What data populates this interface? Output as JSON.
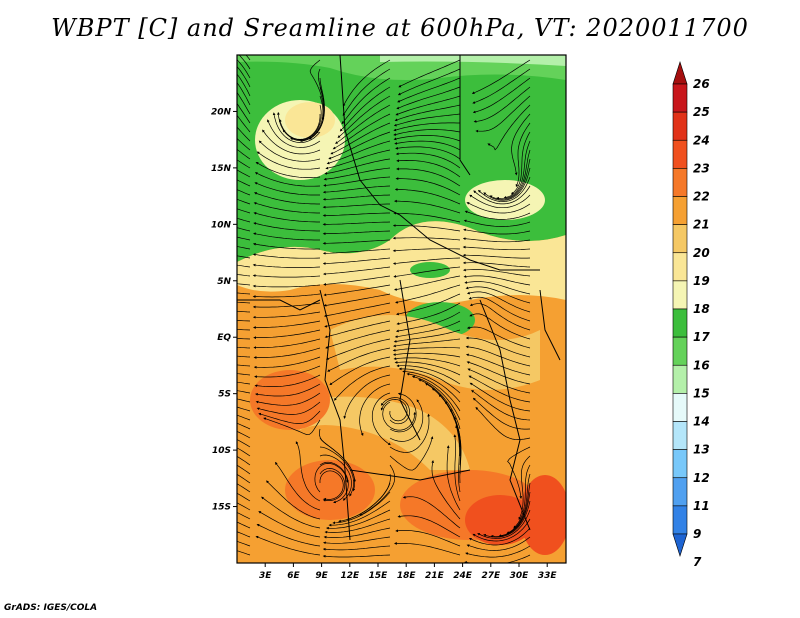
{
  "title": "WBPT [C] and Sreamline at 600hPa, VT: 2020011700",
  "credit": "GrADS: IGES/COLA",
  "map": {
    "lat_labels": [
      "20N",
      "15N",
      "10N",
      "5N",
      "EQ",
      "5S",
      "10S",
      "15S"
    ],
    "lat_values": [
      20,
      15,
      10,
      5,
      0,
      -5,
      -10,
      -15
    ],
    "lon_labels": [
      "3E",
      "6E",
      "9E",
      "12E",
      "15E",
      "18E",
      "21E",
      "24E",
      "27E",
      "30E",
      "33E"
    ],
    "lon_values": [
      3,
      6,
      9,
      12,
      15,
      18,
      21,
      24,
      27,
      30,
      33
    ],
    "lon_range": [
      0,
      35
    ],
    "lat_range": [
      -20,
      25
    ]
  },
  "colorbar": {
    "labels": [
      "26",
      "25",
      "24",
      "23",
      "22",
      "21",
      "20",
      "19",
      "18",
      "17",
      "16",
      "15",
      "14",
      "13",
      "12",
      "11",
      "9",
      "7"
    ],
    "colors": [
      "#a50f0f",
      "#c8161b",
      "#e13218",
      "#f0501e",
      "#f57828",
      "#f5a032",
      "#f5c864",
      "#fae696",
      "#f5f5b4",
      "#3cbe3c",
      "#64d25a",
      "#b4f0aa",
      "#e6fafa",
      "#b4e6fa",
      "#78c8fa",
      "#50a0f0",
      "#3282e6",
      "#1e64d2"
    ]
  }
}
